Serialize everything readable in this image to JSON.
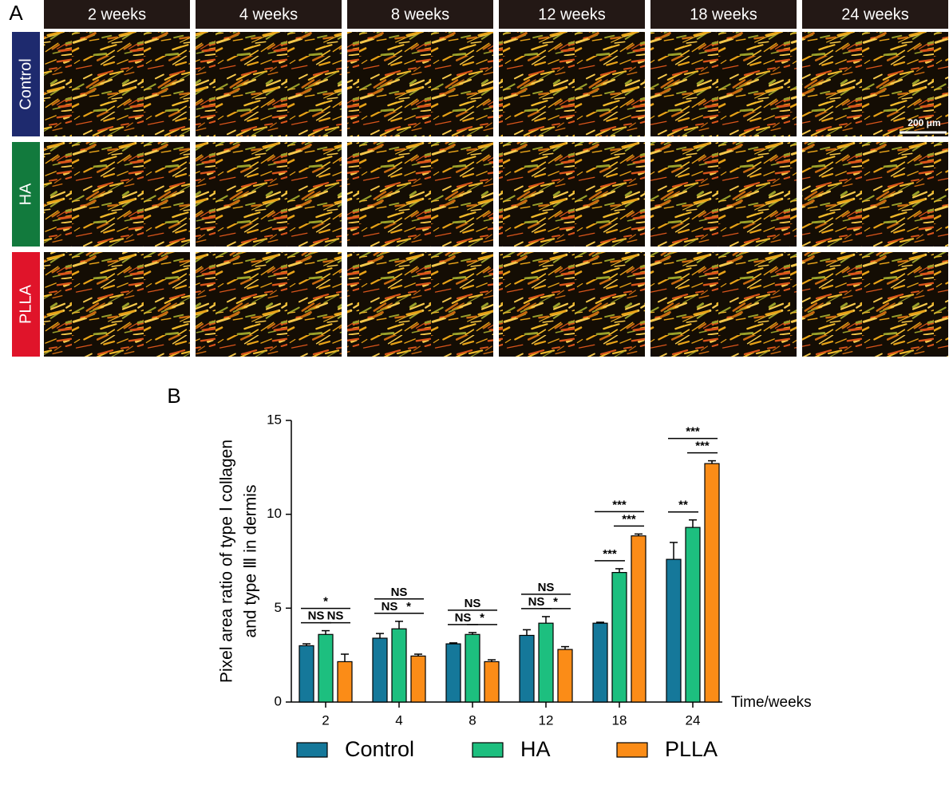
{
  "panel_a": {
    "label": "A",
    "columns": [
      "2 weeks",
      "4 weeks",
      "8 weeks",
      "12 weeks",
      "18 weeks",
      "24 weeks"
    ],
    "rows": [
      {
        "label": "Control",
        "color": "#1e2a6e"
      },
      {
        "label": "HA",
        "color": "#127a3d"
      },
      {
        "label": "PLLA",
        "color": "#e0142a"
      }
    ],
    "scale_bar": "200 μm"
  },
  "chart_data": {
    "type": "bar",
    "panel_label": "B",
    "y_label": [
      "Pixel area ratio of type Ⅰ collagen",
      "and type Ⅲ in dermis"
    ],
    "x_label": "Time/weeks",
    "categories": [
      "2",
      "4",
      "8",
      "12",
      "18",
      "24"
    ],
    "series": [
      {
        "name": "Control",
        "color": "#15789a",
        "values": [
          3.0,
          3.4,
          3.1,
          3.55,
          4.2,
          7.6
        ],
        "errors": [
          0.1,
          0.25,
          0.05,
          0.3,
          0.05,
          0.9
        ]
      },
      {
        "name": "HA",
        "color": "#1dbf7f",
        "values": [
          3.6,
          3.9,
          3.6,
          4.2,
          6.9,
          9.3
        ],
        "errors": [
          0.2,
          0.4,
          0.1,
          0.35,
          0.2,
          0.4
        ]
      },
      {
        "name": "PLLA",
        "color": "#fb8c17",
        "values": [
          2.15,
          2.45,
          2.15,
          2.8,
          8.85,
          12.7
        ],
        "errors": [
          0.4,
          0.1,
          0.1,
          0.15,
          0.1,
          0.15
        ]
      }
    ],
    "ylim": [
      0,
      15
    ],
    "yticks": [
      0,
      5,
      10,
      15
    ],
    "significance": [
      [
        {
          "from": 0,
          "to": 1,
          "label": "NS"
        },
        {
          "from": 1,
          "to": 2,
          "label": "NS"
        },
        {
          "from": 0,
          "to": 2,
          "label": "*"
        }
      ],
      [
        {
          "from": 0,
          "to": 1,
          "label": "NS"
        },
        {
          "from": 1,
          "to": 2,
          "label": "*"
        },
        {
          "from": 0,
          "to": 2,
          "label": "NS"
        }
      ],
      [
        {
          "from": 0,
          "to": 1,
          "label": "NS"
        },
        {
          "from": 1,
          "to": 2,
          "label": "*"
        },
        {
          "from": 0,
          "to": 2,
          "label": "NS"
        }
      ],
      [
        {
          "from": 0,
          "to": 1,
          "label": "NS"
        },
        {
          "from": 1,
          "to": 2,
          "label": "*"
        },
        {
          "from": 0,
          "to": 2,
          "label": "NS"
        }
      ],
      [
        {
          "from": 0,
          "to": 1,
          "label": "***"
        },
        {
          "from": 1,
          "to": 2,
          "label": "***"
        },
        {
          "from": 0,
          "to": 2,
          "label": "***"
        }
      ],
      [
        {
          "from": 0,
          "to": 1,
          "label": "**"
        },
        {
          "from": 1,
          "to": 2,
          "label": "***"
        },
        {
          "from": 0,
          "to": 2,
          "label": "***"
        }
      ]
    ]
  }
}
